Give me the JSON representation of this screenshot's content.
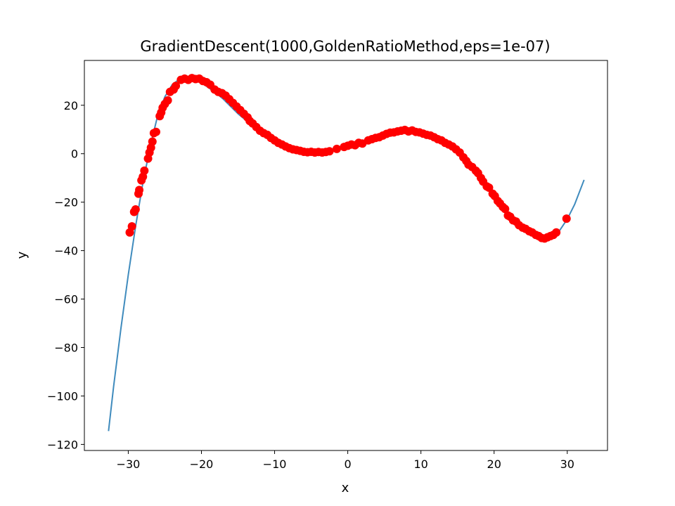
{
  "chart_data": {
    "type": "line",
    "title": "GradientDescent(1000,GoldenRatioMethod,eps=1e-07)",
    "xlabel": "x",
    "ylabel": "y",
    "xlim": [
      -36,
      35.5
    ],
    "ylim": [
      -122.5,
      38.5
    ],
    "xticks": [
      -30,
      -20,
      -10,
      0,
      10,
      20,
      30
    ],
    "xtick_labels": [
      "−30",
      "−20",
      "−10",
      "0",
      "10",
      "20",
      "30"
    ],
    "yticks": [
      -120,
      -100,
      -80,
      -60,
      -40,
      -20,
      0,
      20
    ],
    "ytick_labels": [
      "−120",
      "−100",
      "−80",
      "−60",
      "−40",
      "−20",
      "0",
      "20"
    ],
    "grid": false,
    "series": [
      {
        "kind": "line",
        "color": "#3f8bbd",
        "points": [
          [
            -32.7,
            -114.5
          ],
          [
            -32.0,
            -96.0
          ],
          [
            -31.0,
            -72.0
          ],
          [
            -30.0,
            -50.0
          ],
          [
            -29.0,
            -30.0
          ],
          [
            -28.0,
            -12.0
          ],
          [
            -27.0,
            3.0
          ],
          [
            -26.0,
            15.5
          ],
          [
            -25.0,
            23.5
          ],
          [
            -24.0,
            28.5
          ],
          [
            -23.0,
            30.8
          ],
          [
            -22.0,
            31.3
          ],
          [
            -21.0,
            31.0
          ],
          [
            -20.0,
            29.3
          ],
          [
            -19.0,
            27.2
          ],
          [
            -18.0,
            25.0
          ],
          [
            -17.0,
            22.5
          ],
          [
            -16.0,
            19.5
          ],
          [
            -15.0,
            16.5
          ],
          [
            -14.0,
            14.0
          ],
          [
            -13.0,
            11.5
          ],
          [
            -12.0,
            9.5
          ],
          [
            -11.0,
            7.5
          ],
          [
            -10.0,
            5.5
          ],
          [
            -9.0,
            4.0
          ],
          [
            -8.0,
            2.8
          ],
          [
            -7.0,
            1.8
          ],
          [
            -6.0,
            1.2
          ],
          [
            -5.0,
            0.8
          ],
          [
            -4.0,
            0.7
          ],
          [
            -3.0,
            0.9
          ],
          [
            -2.0,
            1.5
          ],
          [
            -1.0,
            2.3
          ],
          [
            0.0,
            3.2
          ],
          [
            1.0,
            4.2
          ],
          [
            2.0,
            5.0
          ],
          [
            3.0,
            5.8
          ],
          [
            4.0,
            6.6
          ],
          [
            5.0,
            7.4
          ],
          [
            6.0,
            8.2
          ],
          [
            7.0,
            8.9
          ],
          [
            8.0,
            9.4
          ],
          [
            9.0,
            9.4
          ],
          [
            10.0,
            8.9
          ],
          [
            11.0,
            8.0
          ],
          [
            12.0,
            6.8
          ],
          [
            13.0,
            5.2
          ],
          [
            14.0,
            3.2
          ],
          [
            15.0,
            0.8
          ],
          [
            16.0,
            -2.5
          ],
          [
            17.0,
            -6.0
          ],
          [
            18.0,
            -9.5
          ],
          [
            19.0,
            -13.5
          ],
          [
            20.0,
            -17.5
          ],
          [
            21.0,
            -21.0
          ],
          [
            22.0,
            -25.0
          ],
          [
            23.0,
            -28.0
          ],
          [
            24.0,
            -30.5
          ],
          [
            25.0,
            -32.5
          ],
          [
            26.0,
            -34.0
          ],
          [
            27.0,
            -34.5
          ],
          [
            28.0,
            -33.5
          ],
          [
            29.0,
            -31.5
          ],
          [
            30.0,
            -27.0
          ],
          [
            31.0,
            -21.0
          ],
          [
            32.3,
            -10.8
          ]
        ]
      },
      {
        "kind": "scatter",
        "color": "#ff0000",
        "points": [
          [
            -29.8,
            -32.5
          ],
          [
            -29.5,
            -30.0
          ],
          [
            -29.2,
            -24.0
          ],
          [
            -29.0,
            -23.0
          ],
          [
            -28.6,
            -16.5
          ],
          [
            -28.5,
            -15.0
          ],
          [
            -28.2,
            -11.0
          ],
          [
            -28.0,
            -9.5
          ],
          [
            -27.8,
            -7.0
          ],
          [
            -27.3,
            -2.0
          ],
          [
            -27.1,
            0.5
          ],
          [
            -26.9,
            2.5
          ],
          [
            -26.7,
            5.0
          ],
          [
            -26.5,
            8.5
          ],
          [
            -26.2,
            9.0
          ],
          [
            -25.7,
            15.5
          ],
          [
            -25.5,
            17.0
          ],
          [
            -25.3,
            19.0
          ],
          [
            -25.0,
            20.5
          ],
          [
            -24.6,
            22.0
          ],
          [
            -24.3,
            25.5
          ],
          [
            -23.8,
            26.5
          ],
          [
            -23.5,
            28.0
          ],
          [
            -22.8,
            30.5
          ],
          [
            -22.3,
            31.0
          ],
          [
            -21.8,
            30.5
          ],
          [
            -21.3,
            31.2
          ],
          [
            -20.8,
            30.8
          ],
          [
            -20.3,
            31.0
          ],
          [
            -19.8,
            30.0
          ],
          [
            -19.3,
            29.5
          ],
          [
            -18.8,
            28.5
          ],
          [
            -18.2,
            26.5
          ],
          [
            -17.7,
            25.5
          ],
          [
            -17.2,
            25.0
          ],
          [
            -16.7,
            24.0
          ],
          [
            -16.2,
            22.5
          ],
          [
            -15.7,
            21.0
          ],
          [
            -15.2,
            19.5
          ],
          [
            -14.7,
            18.0
          ],
          [
            -14.2,
            16.5
          ],
          [
            -13.7,
            15.0
          ],
          [
            -13.4,
            13.5
          ],
          [
            -13.0,
            12.5
          ],
          [
            -12.5,
            11.0
          ],
          [
            -12.0,
            9.5
          ],
          [
            -11.5,
            8.5
          ],
          [
            -11.0,
            7.8
          ],
          [
            -10.5,
            6.5
          ],
          [
            -10.0,
            5.5
          ],
          [
            -9.5,
            4.5
          ],
          [
            -9.0,
            3.8
          ],
          [
            -8.5,
            3.0
          ],
          [
            -8.0,
            2.3
          ],
          [
            -7.5,
            1.8
          ],
          [
            -7.0,
            1.5
          ],
          [
            -6.5,
            1.2
          ],
          [
            -6.0,
            0.8
          ],
          [
            -5.5,
            0.6
          ],
          [
            -5.0,
            0.8
          ],
          [
            -4.5,
            0.5
          ],
          [
            -4.0,
            0.7
          ],
          [
            -3.5,
            0.5
          ],
          [
            -3.0,
            0.7
          ],
          [
            -2.5,
            1.0
          ],
          [
            -1.5,
            2.0
          ],
          [
            -0.5,
            2.8
          ],
          [
            0.0,
            3.3
          ],
          [
            0.5,
            3.8
          ],
          [
            1.0,
            3.5
          ],
          [
            1.5,
            4.5
          ],
          [
            2.0,
            4.2
          ],
          [
            2.8,
            5.5
          ],
          [
            3.3,
            6.0
          ],
          [
            3.8,
            6.5
          ],
          [
            4.3,
            6.8
          ],
          [
            4.8,
            7.5
          ],
          [
            5.3,
            8.2
          ],
          [
            5.8,
            8.7
          ],
          [
            6.3,
            8.8
          ],
          [
            6.8,
            9.2
          ],
          [
            7.3,
            9.5
          ],
          [
            7.8,
            9.8
          ],
          [
            8.3,
            9.2
          ],
          [
            8.8,
            9.6
          ],
          [
            9.3,
            9.0
          ],
          [
            9.8,
            8.8
          ],
          [
            10.3,
            8.3
          ],
          [
            10.8,
            7.8
          ],
          [
            11.3,
            7.5
          ],
          [
            11.8,
            6.8
          ],
          [
            12.3,
            6.0
          ],
          [
            12.8,
            5.5
          ],
          [
            13.3,
            4.5
          ],
          [
            13.8,
            3.8
          ],
          [
            14.3,
            3.0
          ],
          [
            14.8,
            1.8
          ],
          [
            15.3,
            0.5
          ],
          [
            15.8,
            -1.5
          ],
          [
            16.2,
            -3.0
          ],
          [
            16.5,
            -4.5
          ],
          [
            17.0,
            -5.5
          ],
          [
            17.5,
            -7.0
          ],
          [
            17.8,
            -8.0
          ],
          [
            18.2,
            -10.0
          ],
          [
            18.5,
            -11.5
          ],
          [
            19.0,
            -13.5
          ],
          [
            19.3,
            -14.0
          ],
          [
            19.8,
            -16.5
          ],
          [
            20.1,
            -17.5
          ],
          [
            20.5,
            -19.5
          ],
          [
            20.8,
            -20.5
          ],
          [
            21.2,
            -22.0
          ],
          [
            21.5,
            -22.8
          ],
          [
            21.9,
            -25.5
          ],
          [
            22.2,
            -26.0
          ],
          [
            22.6,
            -27.5
          ],
          [
            23.0,
            -28.0
          ],
          [
            23.4,
            -29.5
          ],
          [
            23.9,
            -30.5
          ],
          [
            24.3,
            -31.0
          ],
          [
            24.8,
            -32.0
          ],
          [
            25.2,
            -32.5
          ],
          [
            25.7,
            -33.5
          ],
          [
            26.1,
            -34.0
          ],
          [
            26.5,
            -34.8
          ],
          [
            26.9,
            -35.0
          ],
          [
            27.3,
            -34.5
          ],
          [
            27.7,
            -34.0
          ],
          [
            28.1,
            -33.5
          ],
          [
            28.5,
            -32.5
          ],
          [
            29.9,
            -26.8
          ]
        ]
      }
    ]
  }
}
